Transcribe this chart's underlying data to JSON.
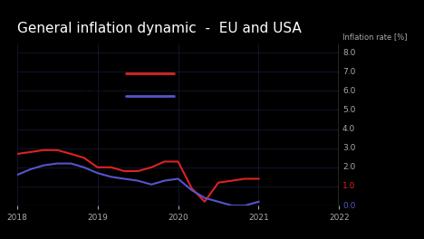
{
  "title": "General inflation dynamic  -  EU and USA",
  "ylabel": "Inflation rate [%]",
  "background_color": "#000000",
  "plot_bg_color": "#000000",
  "grid_color": "#1a1a3a",
  "title_color": "#ffffff",
  "tick_label_color": "#aaaaaa",
  "year_2020_color": "#00ee00",
  "usa_color": "#dd2222",
  "eu_color": "#5555cc",
  "ylim": [
    0.0,
    8.5
  ],
  "yticks": [
    0.0,
    1.0,
    2.0,
    3.0,
    4.0,
    5.0,
    6.0,
    7.0,
    8.0
  ],
  "ytick_colors": [
    "#5555cc",
    "#dd2222",
    "#aaaaaa",
    "#aaaaaa",
    "#aaaaaa",
    "#aaaaaa",
    "#aaaaaa",
    "#aaaaaa",
    "#aaaaaa"
  ],
  "xlim": [
    2018.0,
    2022.0
  ],
  "xticks": [
    2018,
    2019,
    2020,
    2021,
    2022
  ],
  "usa_x": [
    2018.0,
    2018.17,
    2018.33,
    2018.5,
    2018.67,
    2018.83,
    2019.0,
    2019.17,
    2019.33,
    2019.5,
    2019.67,
    2019.83,
    2020.0,
    2020.17,
    2020.33,
    2020.5,
    2020.67,
    2020.83,
    2021.0
  ],
  "usa_y": [
    2.7,
    2.8,
    2.9,
    2.9,
    2.7,
    2.5,
    2.0,
    2.0,
    1.8,
    1.8,
    2.0,
    2.3,
    2.3,
    0.9,
    0.2,
    1.2,
    1.3,
    1.4,
    1.4
  ],
  "eu_x": [
    2018.0,
    2018.17,
    2018.33,
    2018.5,
    2018.67,
    2018.83,
    2019.0,
    2019.17,
    2019.33,
    2019.5,
    2019.67,
    2019.83,
    2020.0,
    2020.17,
    2020.33,
    2020.5,
    2020.67,
    2020.83,
    2021.0
  ],
  "eu_y": [
    1.6,
    1.9,
    2.1,
    2.2,
    2.2,
    2.0,
    1.7,
    1.5,
    1.4,
    1.3,
    1.1,
    1.3,
    1.4,
    0.8,
    0.4,
    0.2,
    0.0,
    0.0,
    0.2
  ],
  "title_fontsize": 11,
  "axis_label_fontsize": 6,
  "tick_fontsize": 6.5,
  "right_spine_color": "#bbbbbb",
  "bottom_spine_color": "#555555"
}
